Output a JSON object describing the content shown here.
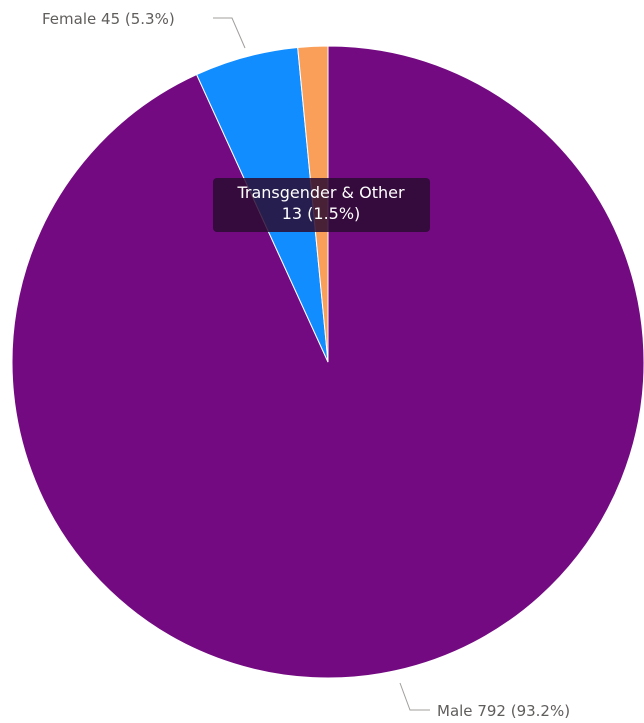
{
  "chart_data": {
    "type": "pie",
    "categories": [
      "Male",
      "Female",
      "Transgender & Other"
    ],
    "values": [
      792,
      45,
      13
    ],
    "value_labels": [
      "792 (93.2%)",
      "45 (5.3%)",
      "13 (1.5%)"
    ],
    "colors": [
      "#730a82",
      "#118dff",
      "#f99f59"
    ]
  }
}
